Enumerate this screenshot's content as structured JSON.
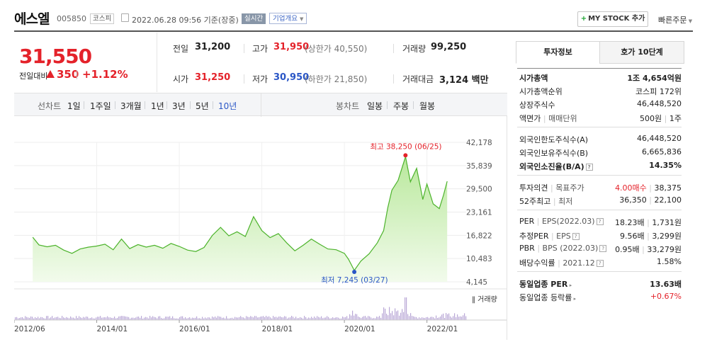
{
  "header": {
    "name": "에스엘",
    "code": "005850",
    "market": "코스피",
    "datetime": "2022.06.28 09:56 기준(장중)",
    "realtime": "실시간",
    "overview": "기업개요",
    "mystock": "MY STOCK 추가",
    "quick_order": "빠른주문"
  },
  "price": {
    "current": "31,550",
    "compare_label": "전일대비",
    "change": "350",
    "change_pct": "+1.12%"
  },
  "quote": {
    "prev_close_label": "전일",
    "prev_close": "31,200",
    "high_label": "고가",
    "high": "31,950",
    "upper_limit": "(상한가 40,550)",
    "volume_label": "거래량",
    "volume": "99,250",
    "open_label": "시가",
    "open": "31,250",
    "low_label": "저가",
    "low": "30,950",
    "lower_limit": "(하한가 21,850)",
    "amount_label": "거래대금",
    "amount": "3,124",
    "amount_unit": "백만"
  },
  "tabs": {
    "line_label": "선차트",
    "periods": [
      "1일",
      "1주일",
      "3개월",
      "1년",
      "3년",
      "5년",
      "10년"
    ],
    "active_period": "10년",
    "candle_label": "봉차트",
    "candles": [
      "일봉",
      "주봉",
      "월봉"
    ]
  },
  "chart_data": {
    "type": "area",
    "yticks": [
      "42,178",
      "35,839",
      "29,500",
      "23,161",
      "16,822",
      "10,483",
      "4,145"
    ],
    "xticks": [
      "2012/06",
      "2014/01",
      "2016/01",
      "2018/01",
      "2020/01",
      "2022/01"
    ],
    "ylim": [
      4145,
      42178
    ],
    "max_annotation": "최고 38,250 (06/25)",
    "min_annotation": "최저 7,245 (03/27)",
    "volume_label": "거래량",
    "colors": {
      "line": "#4cb32b",
      "fill": "#d6f1c4",
      "max": "#e4222a",
      "min": "#2a56c6"
    },
    "series": [
      {
        "values": [
          [
            2012.45,
            16300
          ],
          [
            2012.6,
            14200
          ],
          [
            2012.8,
            13700
          ],
          [
            2013.0,
            14100
          ],
          [
            2013.2,
            12800
          ],
          [
            2013.4,
            11900
          ],
          [
            2013.6,
            13100
          ],
          [
            2013.8,
            13600
          ],
          [
            2014.0,
            13900
          ],
          [
            2014.2,
            14400
          ],
          [
            2014.4,
            12900
          ],
          [
            2014.6,
            15800
          ],
          [
            2014.8,
            13200
          ],
          [
            2015.0,
            14300
          ],
          [
            2015.2,
            13600
          ],
          [
            2015.4,
            14100
          ],
          [
            2015.6,
            13300
          ],
          [
            2015.8,
            14600
          ],
          [
            2016.0,
            13800
          ],
          [
            2016.2,
            12800
          ],
          [
            2016.4,
            12400
          ],
          [
            2016.6,
            13500
          ],
          [
            2016.8,
            16800
          ],
          [
            2017.0,
            19000
          ],
          [
            2017.2,
            16700
          ],
          [
            2017.4,
            17800
          ],
          [
            2017.6,
            16500
          ],
          [
            2017.8,
            21900
          ],
          [
            2018.0,
            18100
          ],
          [
            2018.2,
            16200
          ],
          [
            2018.4,
            17300
          ],
          [
            2018.6,
            14800
          ],
          [
            2018.8,
            12600
          ],
          [
            2019.0,
            14100
          ],
          [
            2019.2,
            15800
          ],
          [
            2019.4,
            14400
          ],
          [
            2019.6,
            13100
          ],
          [
            2019.8,
            12900
          ],
          [
            2020.0,
            11900
          ],
          [
            2020.1,
            10300
          ],
          [
            2020.24,
            7245
          ],
          [
            2020.4,
            9800
          ],
          [
            2020.6,
            11800
          ],
          [
            2020.8,
            14800
          ],
          [
            2020.95,
            18100
          ],
          [
            2021.05,
            24300
          ],
          [
            2021.15,
            29100
          ],
          [
            2021.3,
            31800
          ],
          [
            2021.48,
            38250
          ],
          [
            2021.6,
            31400
          ],
          [
            2021.75,
            35100
          ],
          [
            2021.9,
            26600
          ],
          [
            2022.0,
            30800
          ],
          [
            2022.15,
            25400
          ],
          [
            2022.3,
            24100
          ],
          [
            2022.4,
            27800
          ],
          [
            2022.49,
            31550
          ]
        ]
      }
    ]
  },
  "side": {
    "tab_info": "투자정보",
    "tab_quote": "호가 10단계",
    "rows1": [
      {
        "k": "시가총액",
        "v": "1조 4,654억원",
        "bold": true
      },
      {
        "k": "시가총액순위",
        "v": "코스피 172위"
      },
      {
        "k": "상장주식수",
        "v": "46,448,520"
      },
      {
        "k": "액면가",
        "k2": "매매단위",
        "v": "500원",
        "v2": "1주"
      }
    ],
    "rows2": [
      {
        "k": "외국인한도주식수(A)",
        "v": "46,448,520"
      },
      {
        "k": "외국인보유주식수(B)",
        "v": "6,665,836"
      },
      {
        "k": "외국인소진율(B/A)",
        "v": "14.35%",
        "bold": true
      }
    ],
    "rows3": [
      {
        "k": "투자의견",
        "k2": "목표주가",
        "v": "4.00매수",
        "v2": "38,375"
      },
      {
        "k": "52주최고",
        "k2": "최저",
        "v": "36,350",
        "v2": "22,100"
      }
    ],
    "rows4": [
      {
        "k": "PER",
        "k2": "EPS(2022.03)",
        "v": "18.23배",
        "v2": "1,731원"
      },
      {
        "k": "추정PER",
        "k2": "EPS",
        "v": "9.56배",
        "v2": "3,299원"
      },
      {
        "k": "PBR",
        "k2": "BPS (2022.03)",
        "v": "0.95배",
        "v2": "33,279원"
      },
      {
        "k": "배당수익률",
        "k2": "2021.12",
        "v": "1.58%"
      }
    ],
    "rows5": [
      {
        "k": "동일업종 PER",
        "v": "13.63배",
        "bold": true
      },
      {
        "k": "동일업종 등락률",
        "v": "+0.67%"
      }
    ]
  }
}
